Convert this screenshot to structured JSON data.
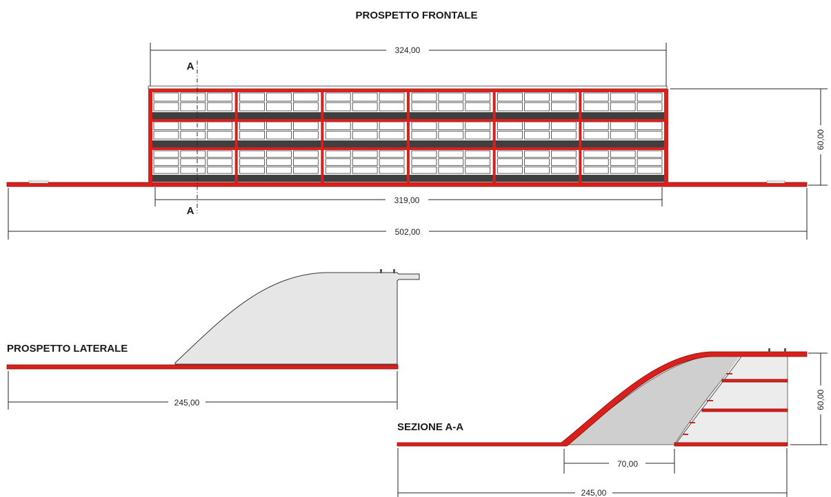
{
  "titles": {
    "front": "PROSPETTO FRONTALE",
    "side": "PROSPETTO LATERALE",
    "section": "SEZIONE A-A"
  },
  "section_marks": {
    "top": "A",
    "bottom": "A"
  },
  "dimensions": {
    "front_top": "324,00",
    "front_inner": "319,00",
    "front_total": "502,00",
    "front_height": "60,00",
    "side_length": "245,00",
    "section_length": "245,00",
    "section_height": "60,00",
    "section_base": "70,00"
  },
  "colors": {
    "structure": "#d8201c",
    "fill": "#e6e6e6",
    "band": "#3f3f3f"
  }
}
